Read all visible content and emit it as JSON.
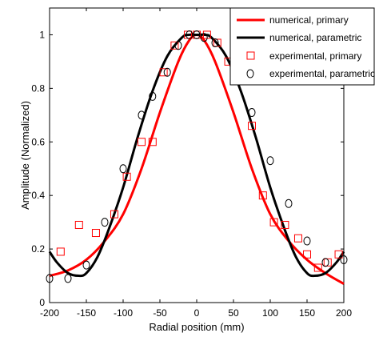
{
  "chart_data": {
    "type": "line",
    "xlabel": "Radial position (mm)",
    "ylabel": "Amplitude (Normalized)",
    "xlim": [
      -200,
      200
    ],
    "ylim": [
      0,
      1.1
    ],
    "xticks": [
      -200,
      -150,
      -100,
      -50,
      0,
      50,
      100,
      150,
      200
    ],
    "xtick_labels": [
      "-200",
      "-150",
      "-100",
      "-50",
      "0",
      "50",
      "100",
      "150",
      "200"
    ],
    "yticks": [
      0,
      0.2,
      0.4,
      0.6,
      0.8,
      1
    ],
    "ytick_labels": [
      "0",
      "0.2",
      "0.4",
      "0.6",
      "0.8",
      "1"
    ],
    "grid": false,
    "legend_position": "top-right",
    "series": [
      {
        "name": "numerical, primary",
        "kind": "line",
        "color": "#ff0000",
        "x": [
          -200,
          -175,
          -150,
          -125,
          -100,
          -75,
          -50,
          -25,
          -10,
          0,
          10,
          25,
          50,
          75,
          100,
          125,
          150,
          175,
          200
        ],
        "y": [
          0.1,
          0.12,
          0.16,
          0.23,
          0.33,
          0.5,
          0.71,
          0.9,
          0.98,
          1.0,
          0.98,
          0.9,
          0.71,
          0.5,
          0.33,
          0.23,
          0.16,
          0.11,
          0.07
        ]
      },
      {
        "name": "numerical, parametric",
        "kind": "line",
        "color": "#000000",
        "x": [
          -200,
          -190,
          -175,
          -160,
          -150,
          -135,
          -120,
          -100,
          -80,
          -60,
          -40,
          -20,
          -10,
          0,
          10,
          20,
          40,
          60,
          80,
          100,
          120,
          135,
          150,
          160,
          175,
          190,
          200
        ],
        "y": [
          0.19,
          0.15,
          0.11,
          0.1,
          0.11,
          0.17,
          0.27,
          0.43,
          0.62,
          0.79,
          0.92,
          0.99,
          1.0,
          1.0,
          1.0,
          0.99,
          0.92,
          0.79,
          0.62,
          0.43,
          0.27,
          0.17,
          0.11,
          0.1,
          0.11,
          0.15,
          0.19
        ]
      },
      {
        "name": "experimental, primary",
        "kind": "scatter",
        "marker": "square",
        "color": "#ff0000",
        "x": [
          -185,
          -160,
          -137,
          -112,
          -95,
          -75,
          -60,
          -45,
          -30,
          -12,
          0,
          14,
          28,
          43,
          60,
          75,
          90,
          105,
          120,
          138,
          150,
          165,
          178,
          193
        ],
        "y": [
          0.19,
          0.29,
          0.26,
          0.33,
          0.47,
          0.6,
          0.6,
          0.86,
          0.96,
          1.0,
          1.0,
          1.0,
          0.97,
          0.9,
          0.86,
          0.66,
          0.4,
          0.3,
          0.29,
          0.24,
          0.18,
          0.13,
          0.15,
          0.18
        ]
      },
      {
        "name": "experimental, parametric",
        "kind": "scatter",
        "marker": "circle",
        "color": "#000000",
        "x": [
          -200,
          -175,
          -150,
          -125,
          -100,
          -75,
          -60,
          -40,
          -25,
          -10,
          0,
          10,
          25,
          50,
          75,
          100,
          125,
          150,
          175,
          200
        ],
        "y": [
          0.09,
          0.09,
          0.14,
          0.3,
          0.5,
          0.7,
          0.77,
          0.86,
          0.96,
          1.0,
          1.0,
          0.99,
          0.97,
          0.86,
          0.71,
          0.53,
          0.37,
          0.23,
          0.15,
          0.16
        ]
      }
    ]
  }
}
